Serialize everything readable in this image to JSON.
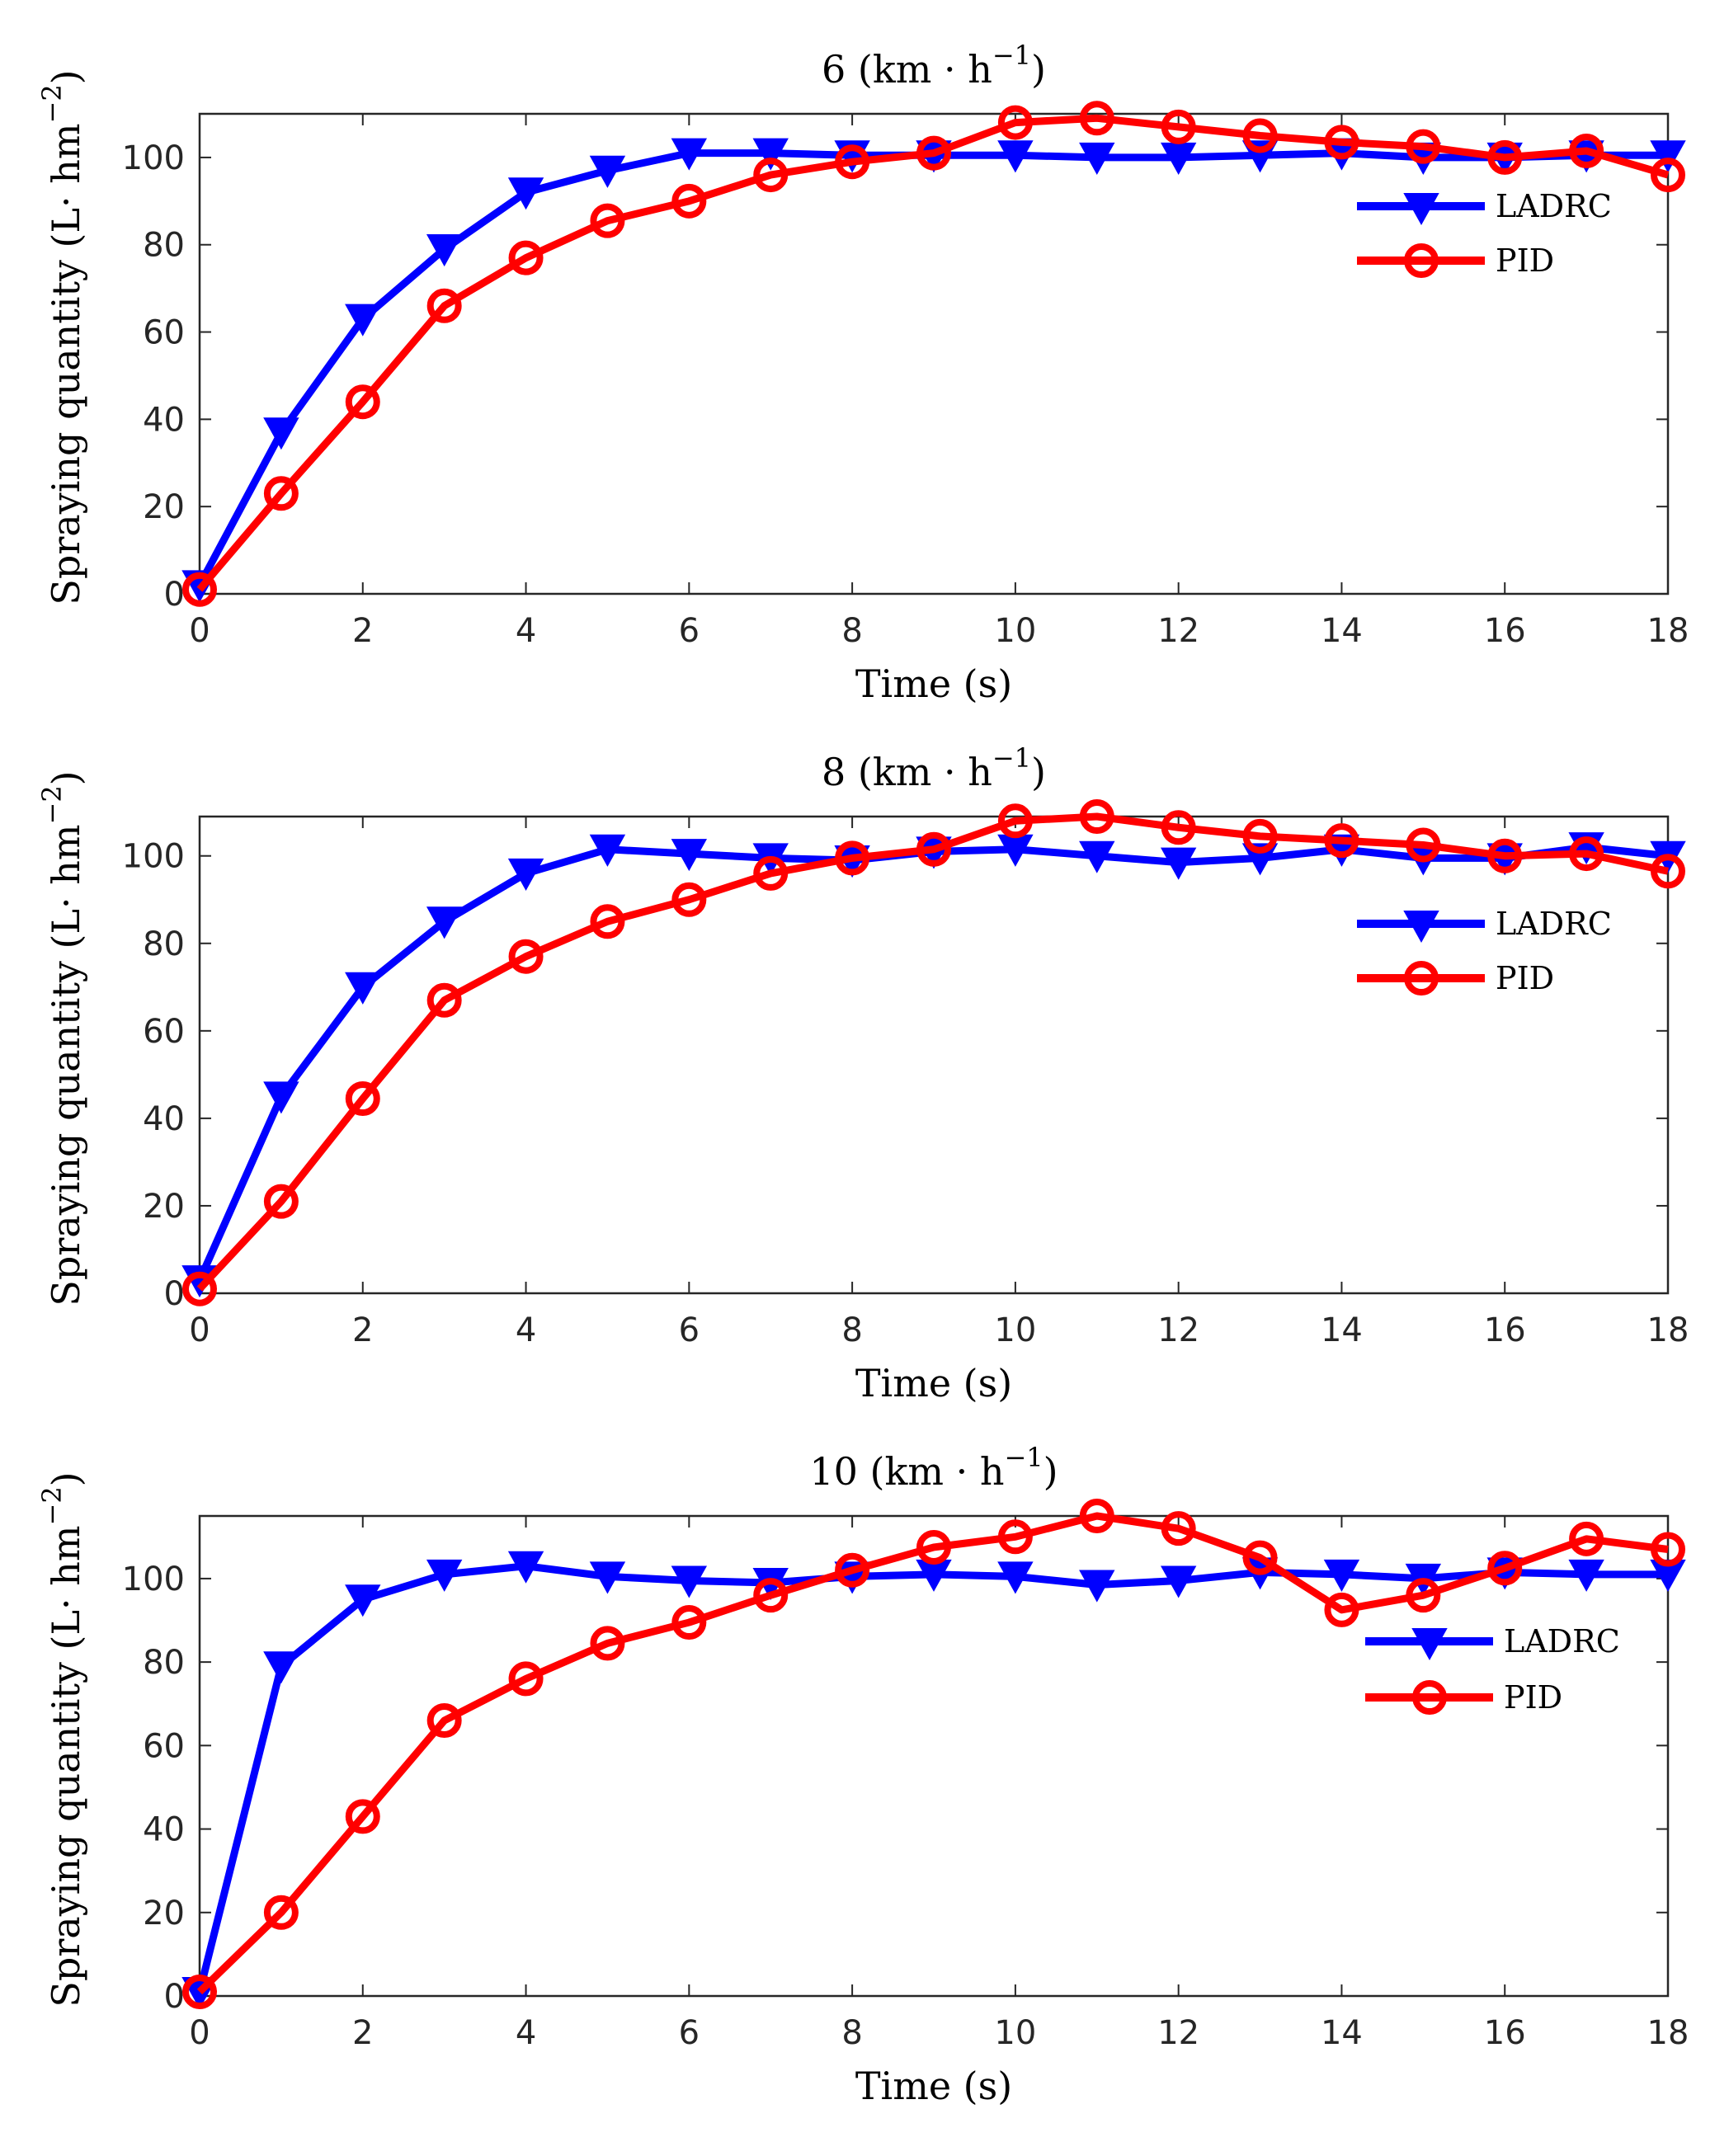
{
  "chart_data": [
    {
      "type": "line",
      "title_main": "6 (km · h",
      "title_sup": "−1",
      "title_end": ")",
      "xlabel": "Time (s)",
      "ylabel_main": "Spraying quantity (L· hm",
      "ylabel_sup": "−2",
      "ylabel_end": ")",
      "xlim": [
        0,
        18
      ],
      "ylim": [
        0,
        110
      ],
      "xticks": [
        0,
        2,
        4,
        6,
        8,
        10,
        12,
        14,
        16,
        18
      ],
      "yticks": [
        0,
        20,
        40,
        60,
        80,
        100
      ],
      "legend_position": "right",
      "x": [
        0,
        1,
        2,
        3,
        4,
        5,
        6,
        7,
        8,
        9,
        10,
        11,
        12,
        13,
        14,
        15,
        16,
        17,
        18
      ],
      "series": [
        {
          "name": "LADRC",
          "color": "#0000ff",
          "marker": "triangle-down",
          "values": [
            2,
            37,
            63,
            79,
            92,
            97,
            101,
            101,
            100.5,
            100.5,
            100.5,
            100,
            100,
            100.5,
            101,
            100,
            100,
            100.5,
            100.5
          ]
        },
        {
          "name": "PID",
          "color": "#ff0000",
          "marker": "circle",
          "values": [
            1,
            23,
            44,
            66,
            77,
            85.5,
            90,
            96,
            99,
            101,
            108,
            109,
            107,
            105,
            103.5,
            102.5,
            100,
            101.5,
            96
          ]
        }
      ]
    },
    {
      "type": "line",
      "title_main": "8 (km · h",
      "title_sup": "−1",
      "title_end": ")",
      "xlabel": "Time (s)",
      "ylabel_main": "Spraying quantity (L· hm",
      "ylabel_sup": "−2",
      "ylabel_end": ")",
      "xlim": [
        0,
        18
      ],
      "ylim": [
        0,
        109
      ],
      "xticks": [
        0,
        2,
        4,
        6,
        8,
        10,
        12,
        14,
        16,
        18
      ],
      "yticks": [
        0,
        20,
        40,
        60,
        80,
        100
      ],
      "legend_position": "right",
      "x": [
        0,
        1,
        2,
        3,
        4,
        5,
        6,
        7,
        8,
        9,
        10,
        11,
        12,
        13,
        14,
        15,
        16,
        17,
        18
      ],
      "series": [
        {
          "name": "LADRC",
          "color": "#0000ff",
          "marker": "triangle-down",
          "values": [
            3,
            45,
            70,
            85,
            96,
            101.5,
            100.5,
            99.5,
            99,
            101,
            101.5,
            100,
            98.5,
            99.5,
            101.5,
            99.5,
            99.5,
            102,
            100
          ]
        },
        {
          "name": "PID",
          "color": "#ff0000",
          "marker": "circle",
          "values": [
            1,
            21,
            44.5,
            67,
            77,
            85,
            90,
            96,
            99.5,
            101.5,
            108,
            109,
            106.5,
            104.5,
            103.5,
            102.5,
            100,
            100.5,
            96.5
          ]
        }
      ]
    },
    {
      "type": "line",
      "title_main": "10 (km · h",
      "title_sup": "−1",
      "title_end": ")",
      "xlabel": "Time (s)",
      "ylabel_main": "Spraying quantity (L· hm",
      "ylabel_sup": "−2",
      "ylabel_end": ")",
      "xlim": [
        0,
        18
      ],
      "ylim": [
        0,
        115
      ],
      "xticks": [
        0,
        2,
        4,
        6,
        8,
        10,
        12,
        14,
        16,
        18
      ],
      "yticks": [
        0,
        20,
        40,
        60,
        80,
        100
      ],
      "legend_position": "right",
      "x": [
        0,
        1,
        2,
        3,
        4,
        5,
        6,
        7,
        8,
        9,
        10,
        11,
        12,
        13,
        14,
        15,
        16,
        17,
        18
      ],
      "series": [
        {
          "name": "LADRC",
          "color": "#0000ff",
          "marker": "triangle-down",
          "values": [
            1,
            79,
            95,
            101,
            103,
            100.5,
            99.5,
            99,
            100.5,
            101,
            100.5,
            98.5,
            99.5,
            101.5,
            101,
            100,
            101.5,
            101,
            101
          ]
        },
        {
          "name": "PID",
          "color": "#ff0000",
          "marker": "circle",
          "values": [
            1,
            20,
            43,
            66,
            76,
            84.5,
            89.5,
            96,
            102,
            107.5,
            110,
            115,
            112,
            105,
            92.5,
            96,
            102.5,
            109.5,
            107
          ]
        }
      ]
    }
  ]
}
